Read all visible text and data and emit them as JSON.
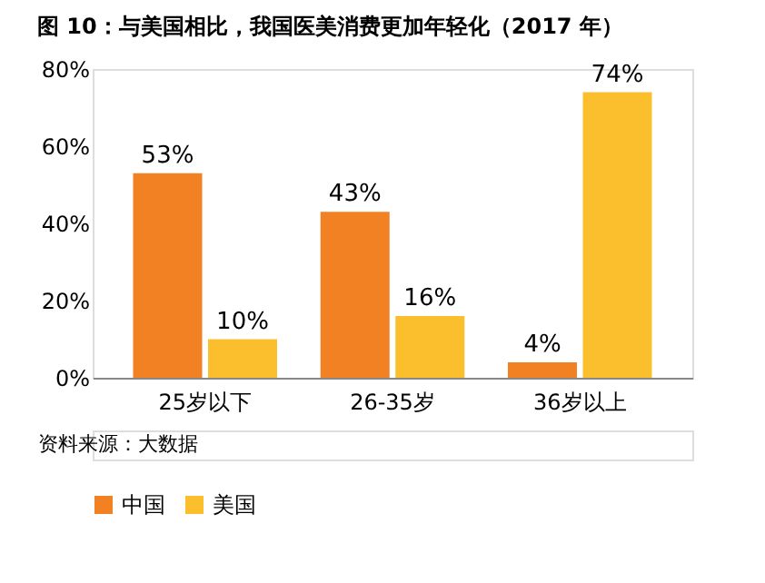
{
  "chart_data": {
    "type": "bar",
    "title": "图 10：与美国相比，我国医美消费更加年轻化（2017 年）",
    "categories": [
      "25岁以下",
      "26-35岁",
      "36岁以上"
    ],
    "series": [
      {
        "name": "中国",
        "color": "#f28124",
        "values": [
          53,
          43,
          4
        ],
        "value_labels": [
          "53%",
          "43%",
          "4%"
        ]
      },
      {
        "name": "美国",
        "color": "#fbbf2d",
        "values": [
          10,
          16,
          74
        ],
        "value_labels": [
          "10%",
          "16%",
          "74%"
        ]
      }
    ],
    "ylim": [
      0,
      80
    ],
    "yticks": [
      {
        "value": 0,
        "label": "0%"
      },
      {
        "value": 20,
        "label": "20%"
      },
      {
        "value": 40,
        "label": "40%"
      },
      {
        "value": 60,
        "label": "60%"
      },
      {
        "value": 80,
        "label": "80%"
      }
    ],
    "grid": false,
    "legend": "bottom",
    "annotations": [
      "资料来源：大数据"
    ]
  }
}
